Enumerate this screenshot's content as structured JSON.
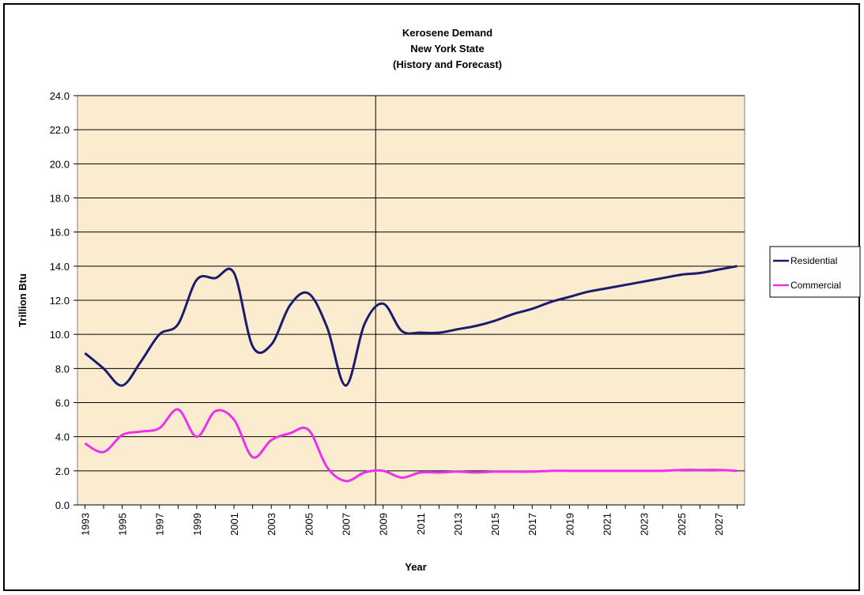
{
  "chart_data": {
    "type": "line",
    "title_lines": [
      "Kerosene Demand",
      "New York State",
      "(History and Forecast)"
    ],
    "xlabel": "Year",
    "ylabel": "Trillion Btu",
    "ylim": [
      0,
      24
    ],
    "y_ticks": [
      "0.0",
      "2.0",
      "4.0",
      "6.0",
      "8.0",
      "10.0",
      "12.0",
      "14.0",
      "16.0",
      "18.0",
      "20.0",
      "22.0",
      "24.0"
    ],
    "x_tick_labels": [
      "1993",
      "1995",
      "1997",
      "1999",
      "2001",
      "2003",
      "2005",
      "2007",
      "2009",
      "2011",
      "2013",
      "2015",
      "2017",
      "2019",
      "2021",
      "2023",
      "2025",
      "2027"
    ],
    "x": [
      1993,
      1994,
      1995,
      1996,
      1997,
      1998,
      1999,
      2000,
      2001,
      2002,
      2003,
      2004,
      2005,
      2006,
      2007,
      2008,
      2009,
      2010,
      2011,
      2012,
      2013,
      2014,
      2015,
      2016,
      2017,
      2018,
      2019,
      2020,
      2021,
      2022,
      2023,
      2024,
      2025,
      2026,
      2027,
      2028
    ],
    "grid": true,
    "forecast_divider_x": 2008.6,
    "legend_position": "right",
    "plot_background": "#fbecd0",
    "series": [
      {
        "name": "Residential",
        "color": "#1c1c6e",
        "values": [
          8.9,
          8.0,
          7.0,
          8.4,
          10.0,
          10.6,
          13.2,
          13.3,
          13.6,
          9.3,
          9.4,
          11.7,
          12.4,
          10.4,
          7.0,
          10.6,
          11.8,
          10.2,
          10.1,
          10.1,
          10.3,
          10.5,
          10.8,
          11.2,
          11.5,
          11.9,
          12.2,
          12.5,
          12.7,
          12.9,
          13.1,
          13.3,
          13.5,
          13.6,
          13.8,
          14.0
        ]
      },
      {
        "name": "Commercial",
        "color": "#ee30ee",
        "values": [
          3.6,
          3.1,
          4.1,
          4.3,
          4.5,
          5.6,
          4.0,
          5.5,
          5.0,
          2.8,
          3.8,
          4.2,
          4.4,
          2.2,
          1.4,
          1.9,
          2.0,
          1.6,
          1.9,
          1.9,
          1.95,
          1.9,
          1.95,
          1.95,
          1.95,
          2.0,
          2.0,
          2.0,
          2.0,
          2.0,
          2.0,
          2.0,
          2.05,
          2.05,
          2.05,
          2.0
        ]
      }
    ]
  }
}
